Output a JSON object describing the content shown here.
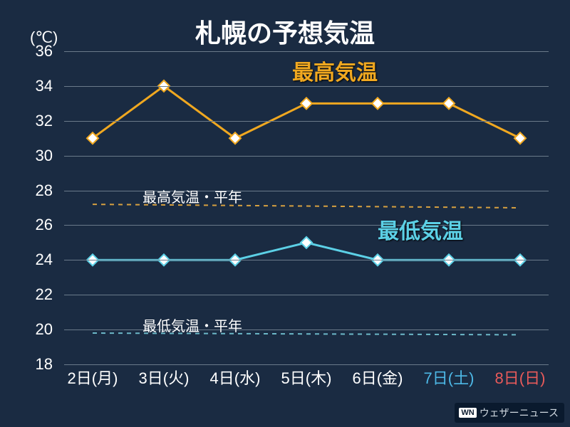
{
  "title": "札幌の予想気温",
  "y_unit": "(℃)",
  "chart": {
    "type": "line",
    "ylim": [
      18,
      36
    ],
    "ytick_step": 2,
    "yticks": [
      18,
      20,
      22,
      24,
      26,
      28,
      30,
      32,
      34,
      36
    ],
    "background_color": "#1a2b42",
    "grid_color": "#6a7a8a",
    "text_color": "#ffffff",
    "x_labels": [
      {
        "text": "2日(月)",
        "color": "#ffffff"
      },
      {
        "text": "3日(火)",
        "color": "#ffffff"
      },
      {
        "text": "4日(水)",
        "color": "#ffffff"
      },
      {
        "text": "5日(木)",
        "color": "#ffffff"
      },
      {
        "text": "6日(金)",
        "color": "#ffffff"
      },
      {
        "text": "7日(土)",
        "color": "#4db8e6"
      },
      {
        "text": "8日(日)",
        "color": "#e85a5a"
      }
    ],
    "series_high": {
      "label": "最高気温",
      "color": "#f0a820",
      "line_width": 3,
      "marker": "diamond",
      "marker_size": 8,
      "values": [
        31,
        34,
        31,
        33,
        33,
        33,
        31
      ]
    },
    "series_low": {
      "label": "最低気温",
      "color": "#5cd0e6",
      "line_width": 3,
      "marker": "diamond",
      "marker_size": 8,
      "values": [
        24,
        24,
        24,
        25,
        24,
        24,
        24
      ]
    },
    "avg_high": {
      "label": "最高気温・平年",
      "color": "#d6a040",
      "line_width": 2,
      "dash": "6,6",
      "value_start": 27.2,
      "value_end": 27.0
    },
    "avg_low": {
      "label": "最低気温・平年",
      "color": "#6cb8c8",
      "line_width": 2,
      "dash": "6,6",
      "value_start": 19.8,
      "value_end": 19.7
    },
    "series_label_fontsize": 30,
    "tick_fontsize": 22,
    "avg_label_fontsize": 20
  },
  "watermark": {
    "logo": "WN",
    "text": "ウェザーニュース"
  }
}
